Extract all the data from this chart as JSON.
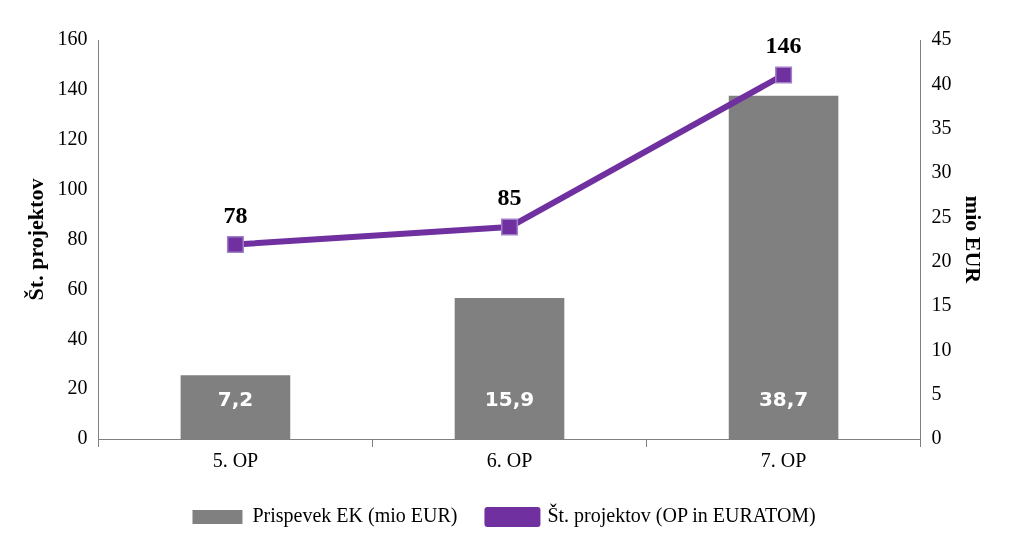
{
  "chart_data": {
    "type": "bar",
    "categories": [
      "5. OP",
      "6. OP",
      "7. OP"
    ],
    "series": [
      {
        "name": "Prispevek EK (mio EUR)",
        "axis": "y2",
        "color": "#808080",
        "values": [
          7.2,
          15.9,
          38.7
        ],
        "value_labels": [
          "7,2",
          "15,9",
          "38,7"
        ]
      },
      {
        "name": "Št. projektov (OP in EURATOM)",
        "type": "line",
        "axis": "y",
        "color": "#7030a0",
        "values": [
          78,
          85,
          146
        ],
        "value_labels": [
          "78",
          "85",
          "146"
        ],
        "marker": "square"
      }
    ],
    "ylabel": "Št. projektov",
    "y2label": "mio EUR",
    "ylim": [
      0,
      160
    ],
    "yticks": [
      0,
      20,
      40,
      60,
      80,
      100,
      120,
      140,
      160
    ],
    "y2lim": [
      0,
      45
    ],
    "y2ticks": [
      0,
      5,
      10,
      15,
      20,
      25,
      30,
      35,
      40,
      45
    ],
    "grid": false,
    "legend": "bottom"
  }
}
